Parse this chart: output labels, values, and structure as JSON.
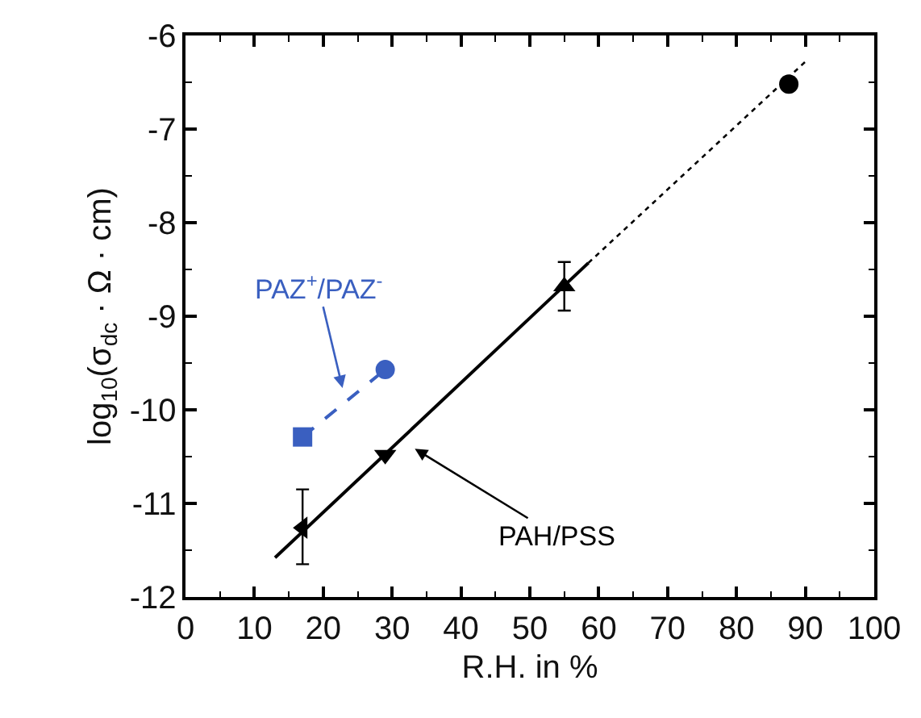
{
  "chart_data": {
    "type": "scatter",
    "xlabel": "R.H. in %",
    "ylabel": "log$_{10}$(σ$_{dc}$ · Ω · cm)",
    "xlim": [
      0,
      100
    ],
    "xticks": [
      0,
      10,
      20,
      30,
      40,
      50,
      60,
      70,
      80,
      90,
      100
    ],
    "ylim": [
      -12,
      -6
    ],
    "yticks": [
      -12,
      -11,
      -10,
      -9,
      -8,
      -7,
      -6
    ],
    "grid": false,
    "series": [
      {
        "type": "line",
        "color": "#000000",
        "x": [
          13,
          58.5
        ],
        "values": [
          -11.58,
          -8.43
        ],
        "marker": "none",
        "line_style": "solid"
      },
      {
        "type": "line",
        "color": "#000000",
        "x": [
          58.5,
          90
        ],
        "values": [
          -8.43,
          -6.28
        ],
        "marker": "none",
        "line_style": "dotted"
      },
      {
        "type": "line",
        "color": "#3a5fc0",
        "x": [
          17,
          29
        ],
        "values": [
          -10.29,
          -9.57
        ],
        "marker": "none",
        "line_style": "dashed"
      },
      {
        "color": "#000000",
        "x": [
          17
        ],
        "values": [
          -11.26
        ],
        "errors": [
          [
            -11.65,
            -10.85
          ]
        ],
        "marker": "triangle-left"
      },
      {
        "color": "#000000",
        "x": [
          29
        ],
        "values": [
          -10.48
        ],
        "marker": "triangle-down"
      },
      {
        "color": "#000000",
        "x": [
          55
        ],
        "values": [
          -8.68
        ],
        "errors": [
          [
            -8.94,
            -8.42
          ]
        ],
        "marker": "triangle"
      },
      {
        "color": "#000000",
        "x": [
          87.6
        ],
        "values": [
          -6.52
        ],
        "marker": "circle"
      },
      {
        "color": "#3a5fc0",
        "x": [
          17
        ],
        "values": [
          -10.29
        ],
        "marker": "square"
      },
      {
        "color": "#3a5fc0",
        "x": [
          29
        ],
        "values": [
          -9.57
        ],
        "marker": "circle"
      }
    ],
    "annotations": [
      "PAZ$^{+}$/PAZ$^{-}$",
      "PAH/PSS"
    ]
  }
}
